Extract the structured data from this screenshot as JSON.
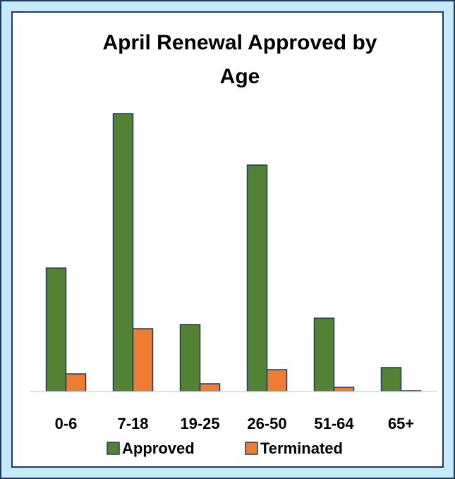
{
  "chart_data": {
    "type": "bar",
    "title": "April Renewal Approved by Age",
    "categories": [
      "0-6",
      "7-18",
      "19-25",
      "26-50",
      "51-64",
      "65+"
    ],
    "series": [
      {
        "name": "Approved",
        "color": "#548235",
        "values": [
          175,
          394,
          95,
          321,
          104,
          34
        ]
      },
      {
        "name": "Terminated",
        "color": "#ed7d31",
        "values": [
          25,
          89,
          11,
          31,
          6,
          1
        ]
      }
    ],
    "legend": "bottom"
  }
}
